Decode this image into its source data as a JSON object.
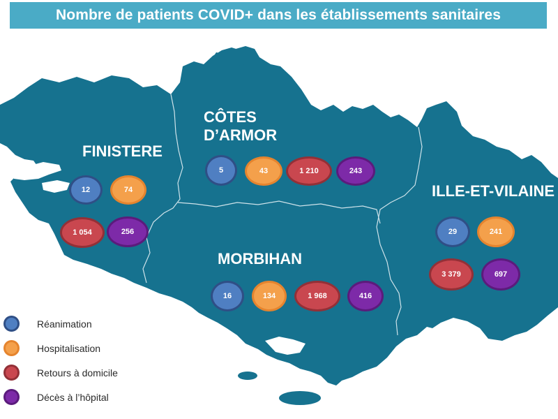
{
  "title": "Nombre de patients COVID+ dans les établissements sanitaires",
  "colors": {
    "map_fill": "#16728f",
    "title_bg": "#4aabc6",
    "reanimation": "#4f7fc2",
    "hospitalisation": "#f4a04b",
    "retours": "#c9474f",
    "deces": "#7d2aa8"
  },
  "departments": {
    "finistere": {
      "name": "FINISTERE",
      "reanimation": "12",
      "hospitalisation": "74",
      "retours": "1 054",
      "deces": "256"
    },
    "cotes_darmor": {
      "name_line1": "CÔTES",
      "name_line2": "D’ARMOR",
      "reanimation": "5",
      "hospitalisation": "43",
      "retours": "1 210",
      "deces": "243"
    },
    "morbihan": {
      "name": "MORBIHAN",
      "reanimation": "16",
      "hospitalisation": "134",
      "retours": "1 968",
      "deces": "416"
    },
    "ille_et_vilaine": {
      "name": "ILLE-ET-VILAINE",
      "reanimation": "29",
      "hospitalisation": "241",
      "retours": "3 379",
      "deces": "697"
    }
  },
  "legend": {
    "reanimation": "Réanimation",
    "hospitalisation": "Hospitalisation",
    "retours": "Retours à domicile",
    "deces": "Décès à l’hôpital"
  }
}
